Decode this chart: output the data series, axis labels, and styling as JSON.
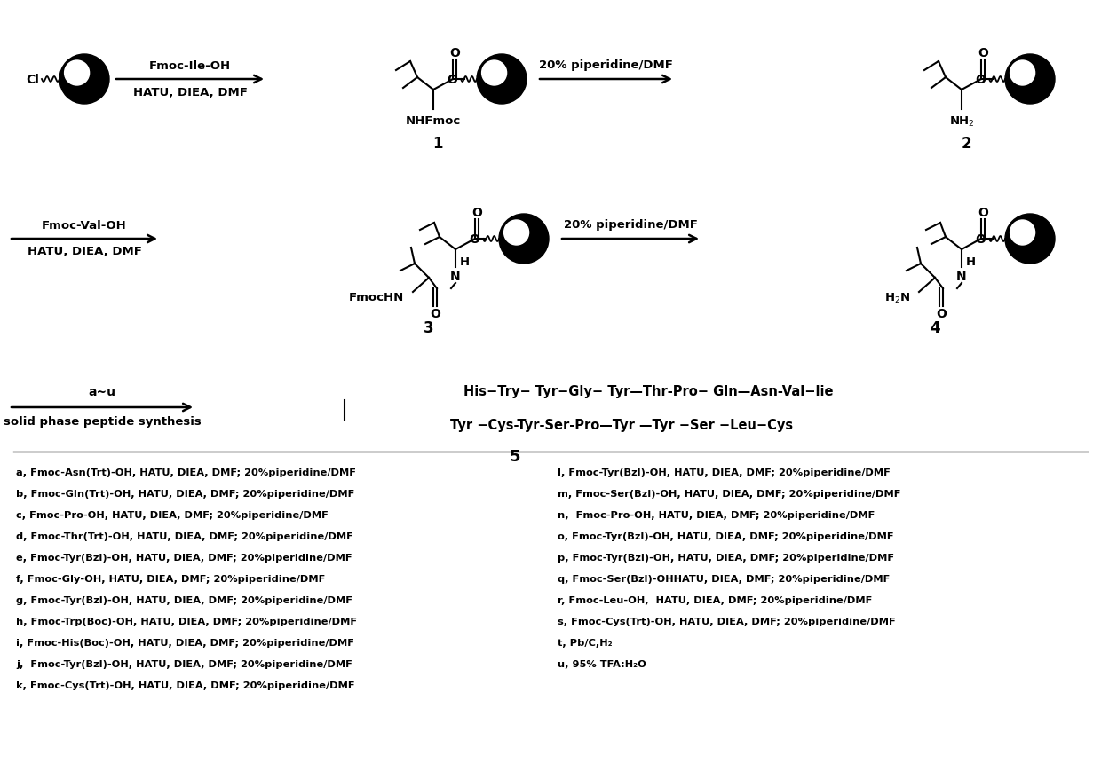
{
  "figure_width": 12.4,
  "figure_height": 8.7,
  "bg_color": "#ffffff",
  "arrow1_top": "Fmoc-Ile-OH",
  "arrow1_bot": "HATU, DIEA, DMF",
  "arrow2_top": "20% piperidine/DMF",
  "arrow3_top": "Fmoc-Val-OH",
  "arrow3_bot": "HATU, DIEA, DMF",
  "arrow4_top": "20% piperidine/DMF",
  "arrow5_top": "a~u",
  "arrow5_bot": "solid phase peptide synthesis",
  "peptide_line1": "His−Try− Tyr−Gly− Tyr—Thr-Pro− Gln—Asn-Val−lie",
  "peptide_line2": "Tyr −Cys-Tyr-Ser-Pro—Tyr —Tyr −Ser −Leu−Cys",
  "footnotes_left": [
    "a, Fmoc-Asn(Trt)-OH, HATU, DIEA, DMF; 20%piperidine/DMF",
    "b, Fmoc-Gln(Trt)-OH, HATU, DIEA, DMF; 20%piperidine/DMF",
    "c, Fmoc-Pro-OH, HATU, DIEA, DMF; 20%piperidine/DMF",
    "d, Fmoc-Thr(Trt)-OH, HATU, DIEA, DMF; 20%piperidine/DMF",
    "e, Fmoc-Tyr(Bzl)-OH, HATU, DIEA, DMF; 20%piperidine/DMF",
    "f, Fmoc-Gly-OH, HATU, DIEA, DMF; 20%piperidine/DMF",
    "g, Fmoc-Tyr(Bzl)-OH, HATU, DIEA, DMF; 20%piperidine/DMF",
    "h, Fmoc-Trp(Boc)-OH, HATU, DIEA, DMF; 20%piperidine/DMF",
    "i, Fmoc-His(Boc)-OH, HATU, DIEA, DMF; 20%piperidine/DMF",
    "j,  Fmoc-Tyr(Bzl)-OH, HATU, DIEA, DMF; 20%piperidine/DMF",
    "k, Fmoc-Cys(Trt)-OH, HATU, DIEA, DMF; 20%piperidine/DMF"
  ],
  "footnotes_right": [
    "l, Fmoc-Tyr(Bzl)-OH, HATU, DIEA, DMF; 20%piperidine/DMF",
    "m, Fmoc-Ser(Bzl)-OH, HATU, DIEA, DMF; 20%piperidine/DMF",
    "n,  Fmoc-Pro-OH, HATU, DIEA, DMF; 20%piperidine/DMF",
    "o, Fmoc-Tyr(Bzl)-OH, HATU, DIEA, DMF; 20%piperidine/DMF",
    "p, Fmoc-Tyr(Bzl)-OH, HATU, DIEA, DMF; 20%piperidine/DMF",
    "q, Fmoc-Ser(Bzl)-OHHATU, DIEA, DMF; 20%piperidine/DMF",
    "r, Fmoc-Leu-OH,  HATU, DIEA, DMF; 20%piperidine/DMF",
    "s, Fmoc-Cys(Trt)-OH, HATU, DIEA, DMF; 20%piperidine/DMF",
    "t, Pb/C,H₂",
    "u, 95% TFA:H₂O"
  ]
}
